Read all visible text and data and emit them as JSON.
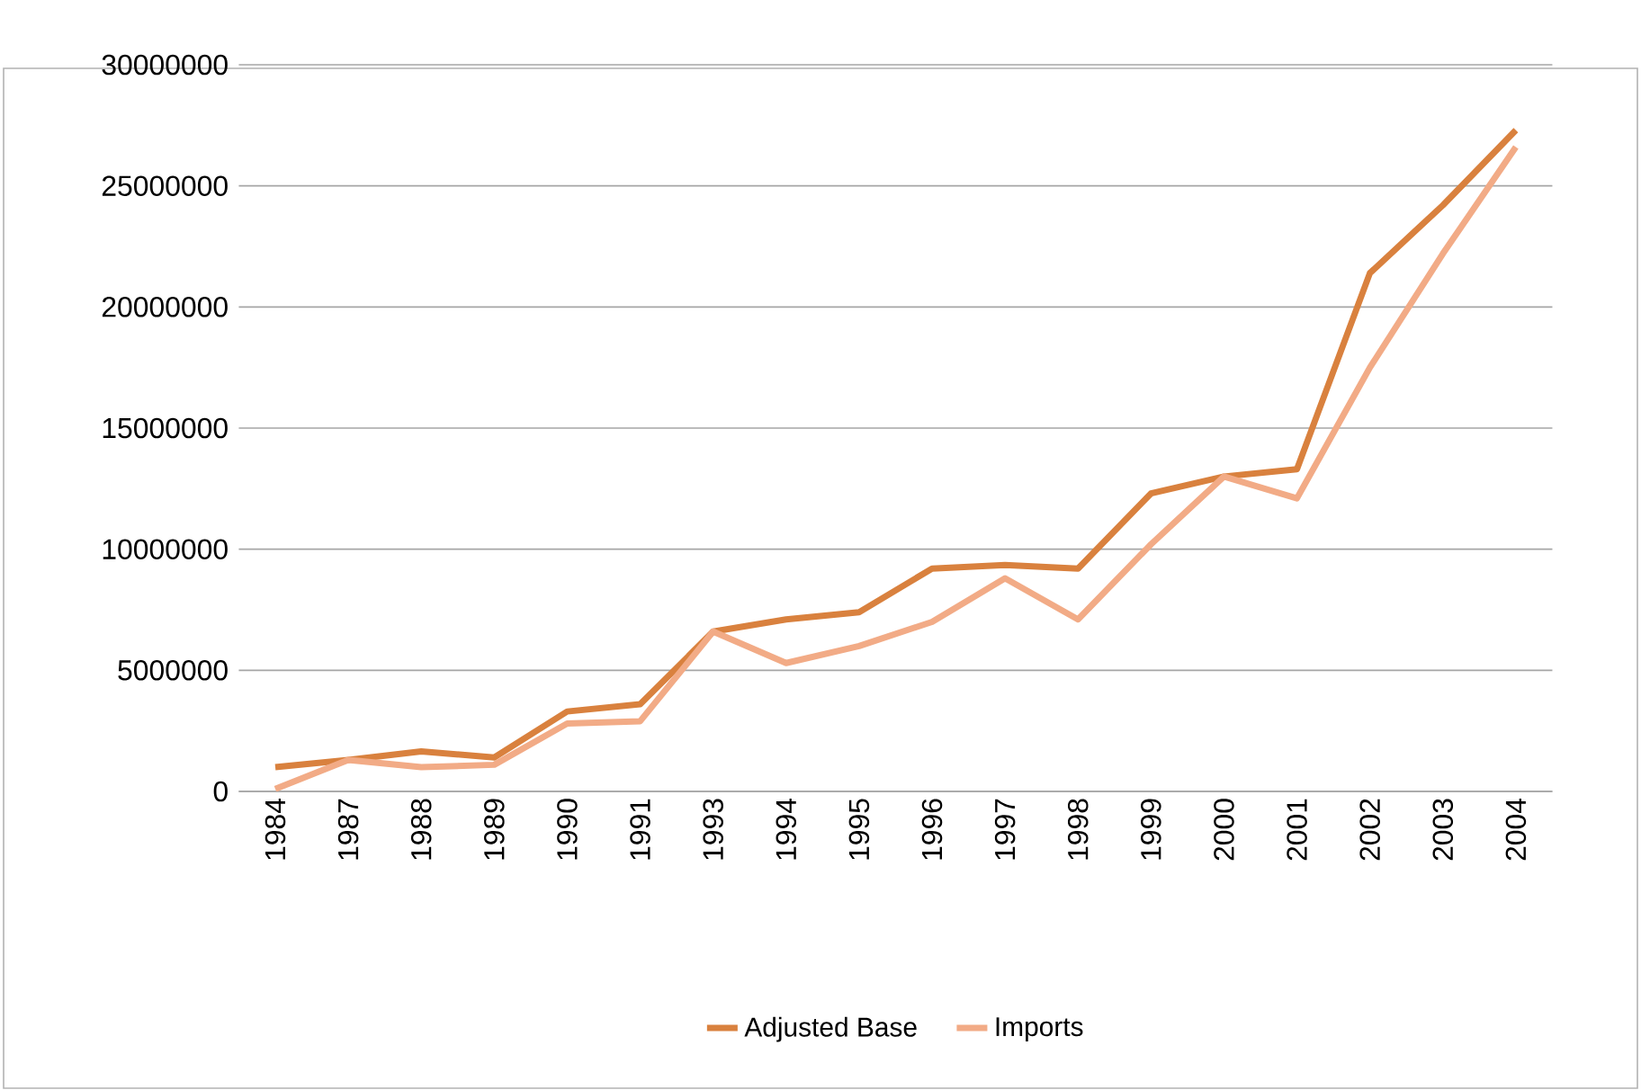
{
  "chart_data": {
    "type": "line",
    "categories": [
      "1984",
      "1987",
      "1988",
      "1989",
      "1990",
      "1991",
      "1993",
      "1994",
      "1995",
      "1996",
      "1997",
      "1998",
      "1999",
      "2000",
      "2001",
      "2002",
      "2003",
      "2004"
    ],
    "series": [
      {
        "name": "Adjusted Base",
        "color": "#d9813e",
        "values": [
          1000000,
          1300000,
          1650000,
          1400000,
          3300000,
          3600000,
          6600000,
          7100000,
          7400000,
          9200000,
          9350000,
          9200000,
          12300000,
          13000000,
          13300000,
          21400000,
          24200000,
          27300000
        ]
      },
      {
        "name": "Imports",
        "color": "#f2ab86",
        "values": [
          100000,
          1300000,
          1000000,
          1100000,
          2800000,
          2900000,
          6600000,
          5300000,
          6000000,
          7000000,
          8800000,
          7100000,
          10200000,
          13000000,
          12100000,
          17500000,
          22200000,
          26600000
        ]
      }
    ],
    "ylim": [
      0,
      30000000
    ],
    "yticks": [
      0,
      5000000,
      10000000,
      15000000,
      20000000,
      25000000,
      30000000
    ],
    "grid": "y",
    "legend": "bottom",
    "marker": "none",
    "line_style": "solid"
  }
}
